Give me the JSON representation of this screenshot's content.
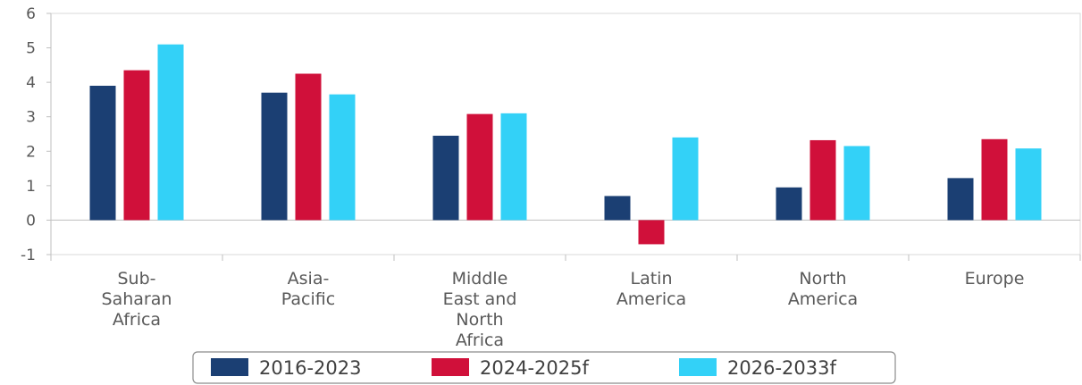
{
  "chart_data": {
    "type": "bar",
    "categories": [
      [
        "Sub-",
        "Saharan",
        "Africa"
      ],
      [
        "Asia-",
        "Pacific"
      ],
      [
        "Middle",
        "East and",
        "North",
        "Africa"
      ],
      [
        "Latin",
        "America"
      ],
      [
        "North",
        "America"
      ],
      [
        "Europe"
      ]
    ],
    "series": [
      {
        "name": "2016-2023",
        "color": "#1b3f73",
        "values": [
          3.9,
          3.7,
          2.45,
          0.7,
          0.95,
          1.22
        ]
      },
      {
        "name": "2024-2025f",
        "color": "#d0103a",
        "values": [
          4.35,
          4.25,
          3.08,
          -0.7,
          2.32,
          2.35
        ]
      },
      {
        "name": "2026-2033f",
        "color": "#33d1f7",
        "values": [
          5.1,
          3.65,
          3.1,
          2.4,
          2.15,
          2.08
        ]
      }
    ],
    "yticks": [
      6,
      5,
      4,
      3,
      2,
      1,
      0,
      -1
    ],
    "ylim": [
      -1,
      6
    ],
    "title": "",
    "xlabel": "",
    "ylabel": "",
    "legend_position": "bottom",
    "grid": false
  }
}
